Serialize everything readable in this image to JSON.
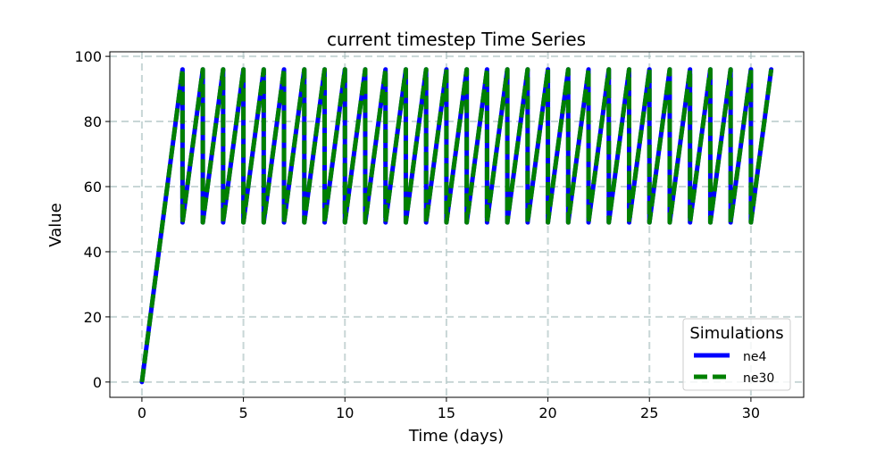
{
  "chart_data": {
    "type": "line",
    "title": "current timestep Time Series",
    "xlabel": "Time (days)",
    "ylabel": "Value",
    "xlim": [
      -1.58,
      32.6
    ],
    "ylim": [
      -4.7,
      101.4
    ],
    "xticks": [
      0,
      5,
      10,
      15,
      20,
      25,
      30
    ],
    "yticks": [
      0,
      20,
      40,
      60,
      80,
      100
    ],
    "grid": true,
    "legend": {
      "title": "Simulations",
      "placement": "bottom-right"
    },
    "pattern_note_free": null,
    "series": [
      {
        "name": "ne4",
        "color": "#0000ff",
        "style": "solid",
        "x": [
          0,
          2,
          2,
          3,
          3,
          4,
          4,
          5,
          5,
          6,
          6,
          7,
          7,
          8,
          8,
          9,
          9,
          10,
          10,
          11,
          11,
          12,
          12,
          13,
          13,
          14,
          14,
          15,
          15,
          16,
          16,
          17,
          17,
          18,
          18,
          19,
          19,
          20,
          20,
          21,
          21,
          22,
          22,
          23,
          23,
          24,
          24,
          25,
          25,
          26,
          26,
          27,
          27,
          28,
          28,
          29,
          29,
          30,
          30,
          31
        ],
        "y": [
          0,
          96,
          49,
          96,
          49,
          96,
          49,
          96,
          49,
          96,
          49,
          96,
          49,
          96,
          49,
          96,
          49,
          96,
          49,
          96,
          49,
          96,
          49,
          96,
          49,
          96,
          49,
          96,
          49,
          96,
          49,
          96,
          49,
          96,
          49,
          96,
          49,
          96,
          49,
          96,
          49,
          96,
          49,
          96,
          49,
          96,
          49,
          96,
          49,
          96,
          49,
          96,
          49,
          96,
          49,
          96,
          49,
          96,
          49,
          96
        ]
      },
      {
        "name": "ne30",
        "color": "#008000",
        "style": "dashed",
        "x": [
          0,
          2,
          2,
          3,
          3,
          4,
          4,
          5,
          5,
          6,
          6,
          7,
          7,
          8,
          8,
          9,
          9,
          10,
          10,
          11,
          11,
          12,
          12,
          13,
          13,
          14,
          14,
          15,
          15,
          16,
          16,
          17,
          17,
          18,
          18,
          19,
          19,
          20,
          20,
          21,
          21,
          22,
          22,
          23,
          23,
          24,
          24,
          25,
          25,
          26,
          26,
          27,
          27,
          28,
          28,
          29,
          29,
          30,
          30,
          31
        ],
        "y": [
          0,
          96,
          49,
          96,
          49,
          96,
          49,
          96,
          49,
          96,
          49,
          96,
          49,
          96,
          49,
          96,
          49,
          96,
          49,
          96,
          49,
          96,
          49,
          96,
          49,
          96,
          49,
          96,
          49,
          96,
          49,
          96,
          49,
          96,
          49,
          96,
          49,
          96,
          49,
          96,
          49,
          96,
          49,
          96,
          49,
          96,
          49,
          96,
          49,
          96,
          49,
          96,
          49,
          96,
          49,
          96,
          49,
          96,
          49,
          96
        ]
      }
    ]
  }
}
